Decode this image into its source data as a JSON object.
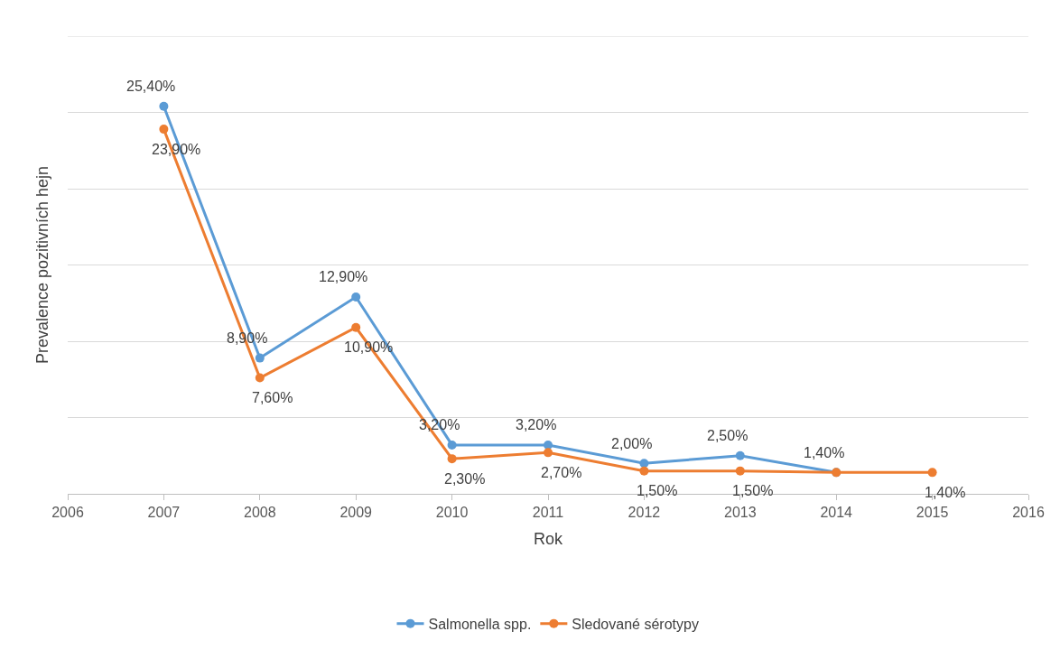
{
  "chart_data": {
    "type": "line",
    "xlabel": "Rok",
    "ylabel": "Prevalence pozitivních hejn",
    "x": [
      2007,
      2008,
      2009,
      2010,
      2011,
      2012,
      2013,
      2014,
      2015
    ],
    "series": [
      {
        "name": "Salmonella spp.",
        "color": "#5b9bd5",
        "values": [
          25.4,
          8.9,
          12.9,
          3.2,
          3.2,
          2.0,
          2.5,
          1.4,
          null
        ],
        "value_labels": [
          "25,40%",
          "8,90%",
          "12,90%",
          "3,20%",
          "3,20%",
          "2,00%",
          "2,50%",
          "1,40%",
          null
        ]
      },
      {
        "name": "Sledované sérotypy",
        "color": "#ed7d31",
        "values": [
          23.9,
          7.6,
          10.9,
          2.3,
          2.7,
          1.5,
          1.5,
          1.4,
          1.4
        ],
        "value_labels": [
          "23,90%",
          "7,60%",
          "10,90%",
          "2,30%",
          "2,70%",
          "1,50%",
          "1,50%",
          null,
          "1,40%"
        ]
      }
    ],
    "xlim": [
      2006,
      2016
    ],
    "xticks": [
      2006,
      2007,
      2008,
      2009,
      2010,
      2011,
      2012,
      2013,
      2014,
      2015,
      2016
    ],
    "ylim": [
      0,
      30
    ],
    "yticks": [
      {
        "value": 0,
        "label": null
      },
      {
        "value": 5,
        "label": null
      },
      {
        "value": 10,
        "label": null
      },
      {
        "value": 15,
        "label": null
      },
      {
        "value": 20,
        "label": null
      },
      {
        "value": 25,
        "label": null
      },
      {
        "value": 30,
        "label": null
      }
    ],
    "tick_labels": "x",
    "grid": "y",
    "legend": "bottom",
    "marker": "circle",
    "line_style": "solid"
  }
}
